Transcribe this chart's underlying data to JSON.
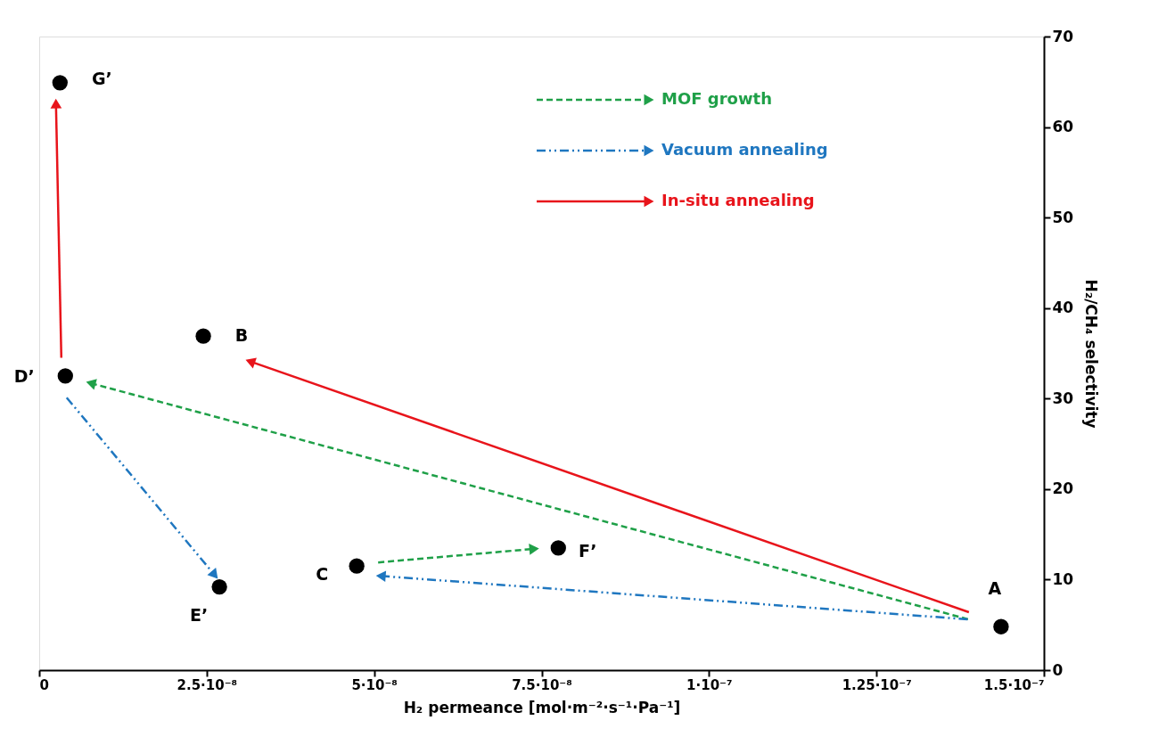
{
  "chart_data": {
    "type": "scatter",
    "xlabel": "H₂ permeance [mol·m⁻²·s⁻¹·Pa⁻¹]",
    "ylabel": "H₂/CH₄ selectivity",
    "xlim": [
      0,
      1.5e-07
    ],
    "xticks": [
      0,
      {
        "value": 2.5e-08,
        "label": "2.5·10⁻⁸"
      },
      {
        "value": 5e-08,
        "label": "5·10⁻⁸"
      },
      {
        "value": 7.5e-08,
        "label": "7.5·10⁻⁸"
      },
      {
        "value": 1e-07,
        "label": "1·10⁻⁷"
      },
      {
        "value": 1.25e-07,
        "label": "1.25·10⁻⁷"
      },
      {
        "value": 1.5e-07,
        "label": "1.5·10⁻⁷"
      }
    ],
    "ylim": [
      0,
      70
    ],
    "yticks": [
      0,
      10,
      20,
      30,
      40,
      50,
      60,
      70
    ],
    "grid": false,
    "legend": "top",
    "series": [
      {
        "color": "#000000",
        "marker": "circle",
        "x": [
          1.436e-07,
          2.45e-08,
          4.74e-08,
          3.9e-09,
          2.69e-08,
          7.75e-08,
          3.1e-09
        ],
        "values": [
          4.8,
          36.9,
          11.5,
          32.5,
          9.2,
          13.5,
          64.9
        ]
      },
      {
        "type": "line",
        "name": "MOF growth",
        "color": "#1fa048",
        "line_style": "dashed",
        "x": [
          1.388e-07,
          7.7e-09,
          null,
          5.06e-08,
          7.39e-08
        ],
        "values": [
          5.6,
          31.7,
          null,
          11.9,
          13.4
        ]
      },
      {
        "type": "line",
        "name": "Vacuum annealing",
        "color": "#1f77c0",
        "line_style": "dashdot",
        "x": [
          1.388e-07,
          5.1e-08,
          null,
          4.1e-09,
          2.62e-08
        ],
        "values": [
          5.6,
          10.4,
          null,
          30.1,
          10.5
        ]
      },
      {
        "type": "line",
        "name": "In-situ annealing",
        "color": "#e8141b",
        "line_style": "solid",
        "x": [
          1.388e-07,
          3.15e-08,
          null,
          3.3e-09,
          2.5e-09
        ],
        "values": [
          6.4,
          34.1,
          null,
          34.5,
          62.6
        ]
      }
    ],
    "annotations": [
      {
        "text": "A",
        "x": 1.436e-07,
        "y": 4.8
      },
      {
        "text": "B",
        "x": 2.45e-08,
        "y": 36.9
      },
      {
        "text": "C",
        "x": 4.74e-08,
        "y": 11.5
      },
      {
        "text": "D’",
        "x": 3.9e-09,
        "y": 32.5
      },
      {
        "text": "E’",
        "x": 2.69e-08,
        "y": 9.2
      },
      {
        "text": "F’",
        "x": 7.75e-08,
        "y": 13.5
      },
      {
        "text": "G’",
        "x": 3.1e-09,
        "y": 64.9
      }
    ]
  }
}
